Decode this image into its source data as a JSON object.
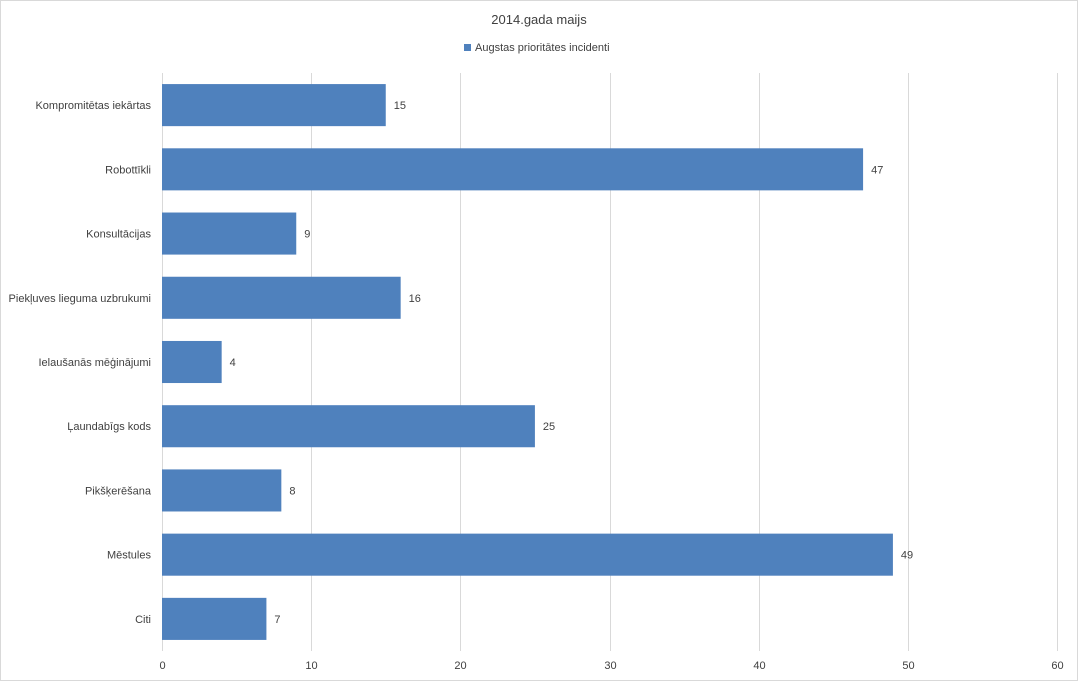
{
  "chart_data": {
    "type": "bar",
    "orientation": "horizontal",
    "title": "2014.gada maijs",
    "categories": [
      "Kompromitētas iekārtas",
      "Robottīkli",
      "Konsultācijas",
      "Piekļuves lieguma uzbrukumi",
      "Ielaušanās mēģinājumi",
      "Ļaundabīgs kods",
      "Pikšķerēšana",
      "Mēstules",
      "Citi"
    ],
    "series": [
      {
        "name": "Augstas prioritātes incidenti",
        "values": [
          15,
          47,
          9,
          16,
          4,
          25,
          8,
          49,
          7
        ],
        "color": "#4f81bd"
      }
    ],
    "xlim": [
      0,
      60
    ],
    "xticks": [
      "0",
      "10",
      "20",
      "30",
      "40",
      "50",
      "60"
    ],
    "grid": true,
    "legend_position": "top-center",
    "data_labels": true
  }
}
